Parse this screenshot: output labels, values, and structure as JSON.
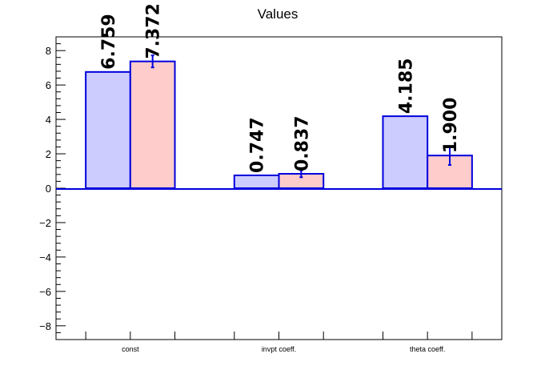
{
  "chart_data": {
    "type": "bar",
    "title": "Values",
    "xlabel": "",
    "ylabel": "",
    "ylim": [
      -8.8,
      8.8
    ],
    "yticks": [
      -8,
      -6,
      -4,
      -2,
      0,
      2,
      4,
      6,
      8
    ],
    "ytick_labels": [
      "−8",
      "−6",
      "−4",
      "−2",
      "0",
      "2",
      "4",
      "6",
      "8"
    ],
    "categories": [
      "const",
      "invpt coeff.",
      "theta coeff."
    ],
    "grid": false,
    "legend": "none",
    "series": [
      {
        "values": [
          6.759,
          0.747,
          4.185
        ],
        "labels": [
          "6.759",
          "0.747",
          "4.185"
        ],
        "errors": [
          0,
          0,
          0
        ],
        "fill": "#ccccff",
        "stroke": "#0000dd"
      },
      {
        "values": [
          7.372,
          0.837,
          1.9
        ],
        "labels": [
          "7.372",
          "0.837",
          "1.900"
        ],
        "errors": [
          0.35,
          0.2,
          0.55
        ],
        "fill": "#ffcccc",
        "stroke": "#0000dd"
      }
    ]
  }
}
